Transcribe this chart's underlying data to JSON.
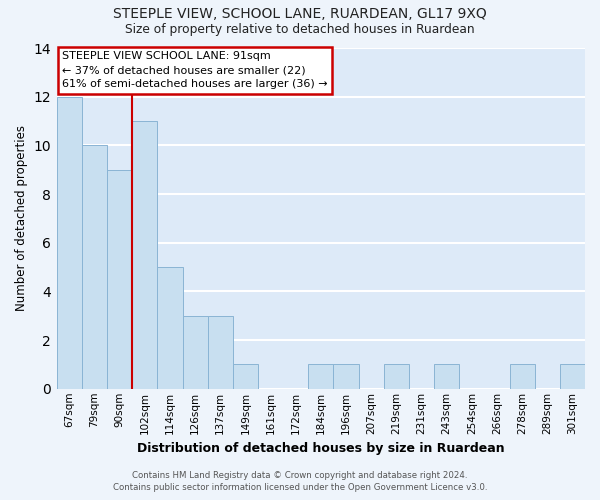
{
  "title": "STEEPLE VIEW, SCHOOL LANE, RUARDEAN, GL17 9XQ",
  "subtitle": "Size of property relative to detached houses in Ruardean",
  "xlabel": "Distribution of detached houses by size in Ruardean",
  "ylabel": "Number of detached properties",
  "bar_color": "#c8dff0",
  "bar_edge_color": "#8ab4d4",
  "categories": [
    "67sqm",
    "79sqm",
    "90sqm",
    "102sqm",
    "114sqm",
    "126sqm",
    "137sqm",
    "149sqm",
    "161sqm",
    "172sqm",
    "184sqm",
    "196sqm",
    "207sqm",
    "219sqm",
    "231sqm",
    "243sqm",
    "254sqm",
    "266sqm",
    "278sqm",
    "289sqm",
    "301sqm"
  ],
  "values": [
    12,
    10,
    9,
    11,
    5,
    3,
    3,
    1,
    0,
    0,
    1,
    1,
    0,
    1,
    0,
    1,
    0,
    0,
    1,
    0,
    1
  ],
  "ylim": [
    0,
    14
  ],
  "yticks": [
    0,
    2,
    4,
    6,
    8,
    10,
    12,
    14
  ],
  "property_line_x": 2.5,
  "annotation_title": "STEEPLE VIEW SCHOOL LANE: 91sqm",
  "annotation_line1": "← 37% of detached houses are smaller (22)",
  "annotation_line2": "61% of semi-detached houses are larger (36) →",
  "annotation_box_color": "#ffffff",
  "annotation_box_edge_color": "#cc0000",
  "property_line_color": "#cc0000",
  "footer1": "Contains HM Land Registry data © Crown copyright and database right 2024.",
  "footer2": "Contains public sector information licensed under the Open Government Licence v3.0.",
  "background_color": "#eef4fb",
  "plot_bg_color": "#ddeaf8",
  "grid_color": "#ffffff"
}
